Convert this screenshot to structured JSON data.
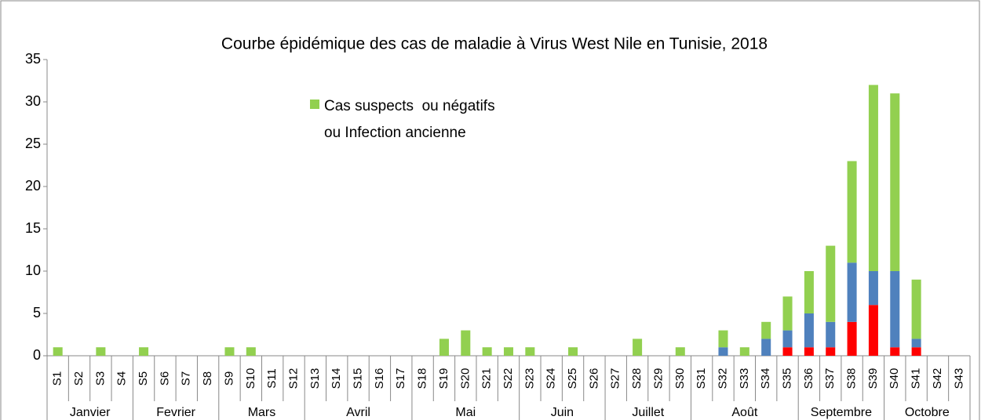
{
  "chart_data": {
    "type": "stacked-bar",
    "title": "Courbe épidémique des cas de maladie à Virus West Nile en Tunisie, 2018",
    "groups": [
      {
        "label": "Janvier",
        "categories": [
          "S1",
          "S2",
          "S3",
          "S4"
        ]
      },
      {
        "label": "Fevrier",
        "categories": [
          "S5",
          "S6",
          "S7",
          "S8"
        ]
      },
      {
        "label": "Mars",
        "categories": [
          "S9",
          "S10",
          "S11",
          "S12"
        ]
      },
      {
        "label": "Avril",
        "categories": [
          "S13",
          "S14",
          "S15",
          "S16",
          "S17"
        ]
      },
      {
        "label": "Mai",
        "categories": [
          "S18",
          "S19",
          "S20",
          "S21",
          "S22"
        ]
      },
      {
        "label": "Juin",
        "categories": [
          "S23",
          "S24",
          "S25",
          "S26"
        ]
      },
      {
        "label": "Juillet",
        "categories": [
          "S27",
          "S28",
          "S29",
          "S30"
        ]
      },
      {
        "label": "Août",
        "categories": [
          "S31",
          "S32",
          "S33",
          "S34",
          "S35"
        ]
      },
      {
        "label": "Septembre",
        "categories": [
          "S36",
          "S37",
          "S38",
          "S39"
        ]
      },
      {
        "label": "Octobre",
        "categories": [
          "S40",
          "S41",
          "S42",
          "S43"
        ]
      }
    ],
    "series": [
      {
        "color": "#ff0000",
        "values": [
          0,
          0,
          0,
          0,
          0,
          0,
          0,
          0,
          0,
          0,
          0,
          0,
          0,
          0,
          0,
          0,
          0,
          0,
          0,
          0,
          0,
          0,
          0,
          0,
          0,
          0,
          0,
          0,
          0,
          0,
          0,
          0,
          0,
          0,
          1,
          1,
          1,
          4,
          6,
          1,
          1,
          0,
          0
        ]
      },
      {
        "color": "#4f81bd",
        "values": [
          0,
          0,
          0,
          0,
          0,
          0,
          0,
          0,
          0,
          0,
          0,
          0,
          0,
          0,
          0,
          0,
          0,
          0,
          0,
          0,
          0,
          0,
          0,
          0,
          0,
          0,
          0,
          0,
          0,
          0,
          0,
          1,
          0,
          2,
          2,
          4,
          3,
          7,
          4,
          9,
          1,
          0,
          0
        ]
      },
      {
        "name": "Cas suspects  ou négatifs ou Infection ancienne",
        "color": "#92d050",
        "values": [
          1,
          0,
          1,
          0,
          1,
          0,
          0,
          0,
          1,
          1,
          0,
          0,
          0,
          0,
          0,
          0,
          0,
          0,
          2,
          3,
          1,
          1,
          1,
          0,
          1,
          0,
          0,
          2,
          0,
          1,
          0,
          2,
          1,
          2,
          4,
          5,
          9,
          12,
          22,
          21,
          7,
          0,
          0
        ]
      }
    ],
    "ylim": [
      0,
      35
    ],
    "yticks": [
      0,
      5,
      10,
      15,
      20,
      25,
      30,
      35
    ],
    "grid": false
  }
}
